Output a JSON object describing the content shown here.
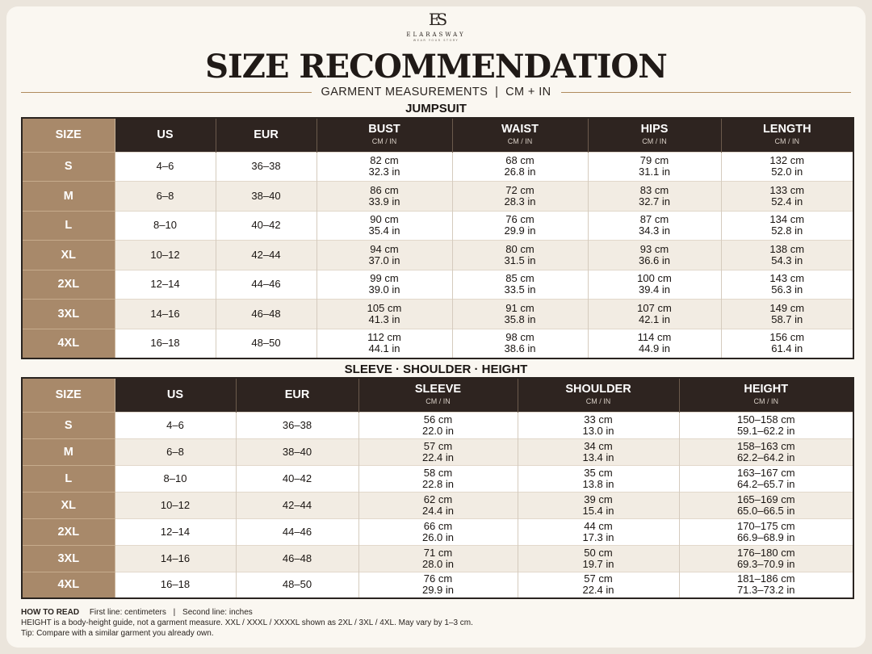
{
  "brand": {
    "monogram": "ES",
    "name": "ELARASWAY",
    "tagline": "WEAR YOUR STORY"
  },
  "title": "SIZE RECOMMENDATION",
  "subtitle": "GARMENT MEASUREMENTS  |  CM + IN",
  "colors": {
    "header_bg": "#2e2420",
    "size_col_bg": "#a8896a",
    "accent_rule": "#b08c5e",
    "row_alt": "#f2ece3"
  },
  "table1": {
    "title": "JUMPSUIT",
    "headers": [
      {
        "label": "SIZE",
        "unit": ""
      },
      {
        "label": "US",
        "unit": ""
      },
      {
        "label": "EUR",
        "unit": ""
      },
      {
        "label": "BUST",
        "unit": "CM / IN"
      },
      {
        "label": "WAIST",
        "unit": "CM / IN"
      },
      {
        "label": "HIPS",
        "unit": "CM / IN"
      },
      {
        "label": "LENGTH",
        "unit": "CM / IN"
      }
    ],
    "rows": [
      {
        "size": "S",
        "us": "4–6",
        "eur": "36–38",
        "c1": [
          "82 cm",
          "32.3 in"
        ],
        "c2": [
          "68 cm",
          "26.8 in"
        ],
        "c3": [
          "79 cm",
          "31.1 in"
        ],
        "c4": [
          "132 cm",
          "52.0 in"
        ]
      },
      {
        "size": "M",
        "us": "6–8",
        "eur": "38–40",
        "c1": [
          "86 cm",
          "33.9 in"
        ],
        "c2": [
          "72 cm",
          "28.3 in"
        ],
        "c3": [
          "83 cm",
          "32.7 in"
        ],
        "c4": [
          "133 cm",
          "52.4 in"
        ]
      },
      {
        "size": "L",
        "us": "8–10",
        "eur": "40–42",
        "c1": [
          "90 cm",
          "35.4 in"
        ],
        "c2": [
          "76 cm",
          "29.9 in"
        ],
        "c3": [
          "87 cm",
          "34.3 in"
        ],
        "c4": [
          "134 cm",
          "52.8 in"
        ]
      },
      {
        "size": "XL",
        "us": "10–12",
        "eur": "42–44",
        "c1": [
          "94 cm",
          "37.0 in"
        ],
        "c2": [
          "80 cm",
          "31.5 in"
        ],
        "c3": [
          "93 cm",
          "36.6 in"
        ],
        "c4": [
          "138 cm",
          "54.3 in"
        ]
      },
      {
        "size": "2XL",
        "us": "12–14",
        "eur": "44–46",
        "c1": [
          "99 cm",
          "39.0 in"
        ],
        "c2": [
          "85 cm",
          "33.5 in"
        ],
        "c3": [
          "100 cm",
          "39.4 in"
        ],
        "c4": [
          "143 cm",
          "56.3 in"
        ]
      },
      {
        "size": "3XL",
        "us": "14–16",
        "eur": "46–48",
        "c1": [
          "105 cm",
          "41.3 in"
        ],
        "c2": [
          "91 cm",
          "35.8 in"
        ],
        "c3": [
          "107 cm",
          "42.1 in"
        ],
        "c4": [
          "149 cm",
          "58.7 in"
        ]
      },
      {
        "size": "4XL",
        "us": "16–18",
        "eur": "48–50",
        "c1": [
          "112 cm",
          "44.1 in"
        ],
        "c2": [
          "98 cm",
          "38.6 in"
        ],
        "c3": [
          "114 cm",
          "44.9 in"
        ],
        "c4": [
          "156 cm",
          "61.4 in"
        ]
      }
    ]
  },
  "table2": {
    "title": "SLEEVE · SHOULDER · HEIGHT",
    "headers": [
      {
        "label": "SIZE",
        "unit": ""
      },
      {
        "label": "US",
        "unit": ""
      },
      {
        "label": "EUR",
        "unit": ""
      },
      {
        "label": "SLEEVE",
        "unit": "CM / IN"
      },
      {
        "label": "SHOULDER",
        "unit": "CM / IN"
      },
      {
        "label": "HEIGHT",
        "unit": "CM / IN"
      }
    ],
    "rows": [
      {
        "size": "S",
        "us": "4–6",
        "eur": "36–38",
        "c1": [
          "56 cm",
          "22.0 in"
        ],
        "c2": [
          "33 cm",
          "13.0 in"
        ],
        "c3": [
          "150–158 cm",
          "59.1–62.2 in"
        ]
      },
      {
        "size": "M",
        "us": "6–8",
        "eur": "38–40",
        "c1": [
          "57 cm",
          "22.4 in"
        ],
        "c2": [
          "34 cm",
          "13.4 in"
        ],
        "c3": [
          "158–163 cm",
          "62.2–64.2 in"
        ]
      },
      {
        "size": "L",
        "us": "8–10",
        "eur": "40–42",
        "c1": [
          "58 cm",
          "22.8 in"
        ],
        "c2": [
          "35 cm",
          "13.8 in"
        ],
        "c3": [
          "163–167 cm",
          "64.2–65.7 in"
        ]
      },
      {
        "size": "XL",
        "us": "10–12",
        "eur": "42–44",
        "c1": [
          "62 cm",
          "24.4 in"
        ],
        "c2": [
          "39 cm",
          "15.4 in"
        ],
        "c3": [
          "165–169 cm",
          "65.0–66.5 in"
        ]
      },
      {
        "size": "2XL",
        "us": "12–14",
        "eur": "44–46",
        "c1": [
          "66 cm",
          "26.0 in"
        ],
        "c2": [
          "44 cm",
          "17.3 in"
        ],
        "c3": [
          "170–175 cm",
          "66.9–68.9 in"
        ]
      },
      {
        "size": "3XL",
        "us": "14–16",
        "eur": "46–48",
        "c1": [
          "71 cm",
          "28.0 in"
        ],
        "c2": [
          "50 cm",
          "19.7 in"
        ],
        "c3": [
          "176–180 cm",
          "69.3–70.9 in"
        ]
      },
      {
        "size": "4XL",
        "us": "16–18",
        "eur": "48–50",
        "c1": [
          "76 cm",
          "29.9 in"
        ],
        "c2": [
          "57 cm",
          "22.4 in"
        ],
        "c3": [
          "181–186 cm",
          "71.3–73.2 in"
        ]
      }
    ]
  },
  "footer": {
    "how_to_read": "HOW TO READ",
    "first_line": "First line: centimeters",
    "separator": "|",
    "second_line": "Second line: inches",
    "note": "HEIGHT is a body-height guide, not a garment measure. XXL / XXXL / XXXXL shown as 2XL / 3XL / 4XL. May vary by 1–3 cm.",
    "tip": "Tip: Compare with a similar garment you already own."
  }
}
